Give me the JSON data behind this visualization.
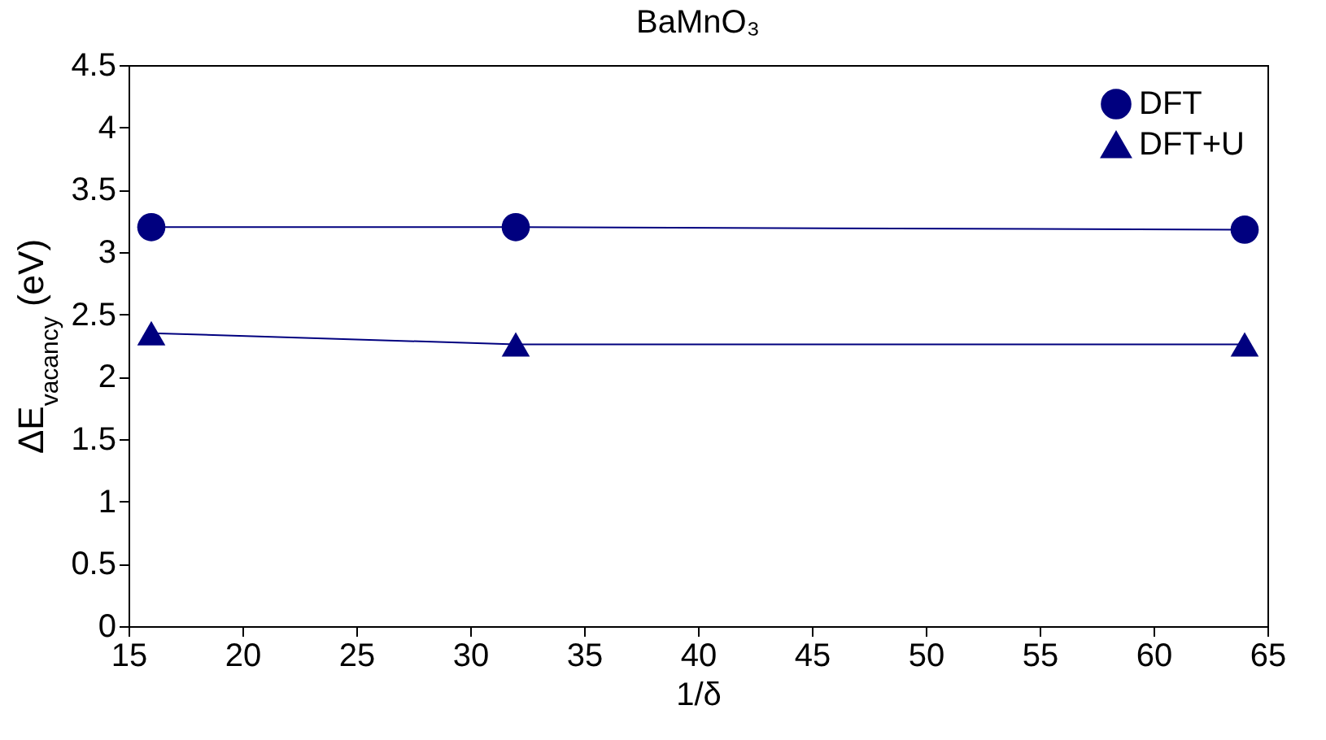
{
  "chart_data": {
    "type": "line",
    "title": "BaMnO₃",
    "xlabel": "1/δ",
    "ylabel": "ΔE$_{vacancy}$ (eV)",
    "x": [
      16,
      32,
      64
    ],
    "series": [
      {
        "name": "DFT",
        "color": "#00007f",
        "marker": "circle",
        "values": [
          3.2,
          3.2,
          3.18
        ]
      },
      {
        "name": "DFT+U",
        "color": "#00007f",
        "marker": "triangle",
        "values": [
          2.35,
          2.26,
          2.26
        ]
      }
    ],
    "xlim": [
      15,
      65
    ],
    "xticks": [
      15,
      20,
      25,
      30,
      35,
      40,
      45,
      50,
      55,
      60,
      65
    ],
    "ylim": [
      0,
      4.5
    ],
    "yticks": [
      0,
      0.5,
      1,
      1.5,
      2,
      2.5,
      3,
      3.5,
      4,
      4.5
    ],
    "grid": false,
    "legend": "top right",
    "line_style": "solid"
  }
}
